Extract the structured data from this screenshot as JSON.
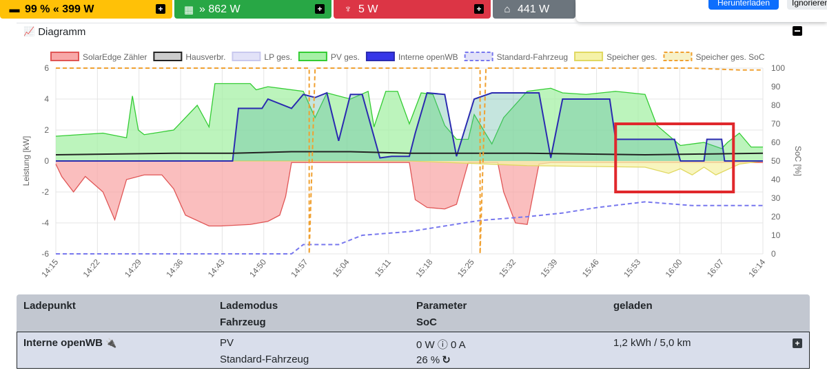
{
  "status_bar": {
    "battery": {
      "icon": "battery-icon",
      "glyph": "▬",
      "text": "99 % « 399 W",
      "color": "#ffc107",
      "text_color": "#000000"
    },
    "pv": {
      "icon": "solar-panel-icon",
      "glyph": "▦",
      "text": "» 862 W",
      "color": "#28a745",
      "text_color": "#ffffff"
    },
    "grid": {
      "icon": "power-tower-icon",
      "glyph": "♆",
      "text": "5 W",
      "color": "#dc3545",
      "text_color": "#ffffff"
    },
    "house": {
      "icon": "house-icon",
      "glyph": "⌂",
      "text": "441 W",
      "color": "#6c757d",
      "text_color": "#ffffff"
    }
  },
  "toast": {
    "primary_label": "Herunterladen",
    "secondary_label": "Ignorieren"
  },
  "diagram_card": {
    "title": "Diagramm"
  },
  "chart_data": {
    "type": "area",
    "title": "",
    "legend": [
      {
        "name": "SolarEdge Zähler",
        "fill": "#f8a8a8",
        "stroke": "#e05555",
        "dashed": false
      },
      {
        "name": "Hausverbr.",
        "fill": "#cccccc",
        "stroke": "#222222",
        "dashed": false
      },
      {
        "name": "LP ges.",
        "fill": "#e2e2f8",
        "stroke": "#c8c8ee",
        "dashed": false
      },
      {
        "name": "PV ges.",
        "fill": "#a6f0a6",
        "stroke": "#33cc33",
        "dashed": false
      },
      {
        "name": "Interne openWB",
        "fill": "#3535e8",
        "stroke": "#2a2ab0",
        "dashed": false
      },
      {
        "name": "Standard-Fahrzeug",
        "fill": "#e2e2f8",
        "stroke": "#7777ee",
        "dashed": true
      },
      {
        "name": "Speicher ges.",
        "fill": "#f5f2a8",
        "stroke": "#e0d860",
        "dashed": false
      },
      {
        "name": "Speicher ges. SoC",
        "fill": "#f7f1c8",
        "stroke": "#f0a030",
        "dashed": true
      }
    ],
    "ylabel": "Leistung [kW]",
    "y2label": "SoC [%]",
    "ylim": [
      -6,
      6
    ],
    "y2lim": [
      0,
      100
    ],
    "yticks": [
      "6",
      "4",
      "2",
      "0",
      "-2",
      "-4",
      "-6"
    ],
    "y2ticks": [
      "100",
      "90",
      "80",
      "70",
      "60",
      "50",
      "40",
      "30",
      "20",
      "10",
      "0"
    ],
    "xticks": [
      "14:15",
      "14:22",
      "14:29",
      "14:36",
      "14:43",
      "14:50",
      "14:57",
      "15:04",
      "15:11",
      "15:18",
      "15:25",
      "15:32",
      "15:39",
      "15:46",
      "15:53",
      "16:00",
      "16:07",
      "16:14"
    ],
    "x_minutes_start": 0,
    "x_minutes_end": 120,
    "series": [
      {
        "name": "PV ges.",
        "points": [
          [
            0,
            1.6
          ],
          [
            8,
            1.8
          ],
          [
            12,
            1.5
          ],
          [
            13,
            4.2
          ],
          [
            14,
            2.0
          ],
          [
            15,
            1.7
          ],
          [
            20,
            2.0
          ],
          [
            24,
            3.6
          ],
          [
            26,
            2.2
          ],
          [
            27,
            5.0
          ],
          [
            33,
            5.0
          ],
          [
            34,
            4.6
          ],
          [
            36,
            4.8
          ],
          [
            42,
            4.5
          ],
          [
            44,
            2.8
          ],
          [
            46,
            4.4
          ],
          [
            50,
            4.0
          ],
          [
            53,
            4.5
          ],
          [
            54,
            2.2
          ],
          [
            56,
            4.5
          ],
          [
            58,
            4.5
          ],
          [
            60,
            2.4
          ],
          [
            62,
            4.4
          ],
          [
            64,
            4.3
          ],
          [
            66,
            2.3
          ],
          [
            68,
            1.4
          ],
          [
            70,
            1.4
          ],
          [
            71,
            3.0
          ],
          [
            74,
            1.1
          ],
          [
            76,
            2.8
          ],
          [
            80,
            4.5
          ],
          [
            84,
            4.7
          ],
          [
            86,
            4.4
          ],
          [
            90,
            4.3
          ],
          [
            95,
            4.5
          ],
          [
            100,
            4.3
          ],
          [
            102,
            2.3
          ],
          [
            106,
            1.0
          ],
          [
            110,
            1.2
          ],
          [
            113,
            0.8
          ],
          [
            114,
            1.2
          ],
          [
            116,
            1.8
          ],
          [
            118,
            0.9
          ],
          [
            120,
            0.9
          ]
        ]
      },
      {
        "name": "Interne openWB",
        "points": [
          [
            0,
            0
          ],
          [
            30,
            0
          ],
          [
            31,
            3.4
          ],
          [
            35,
            3.4
          ],
          [
            36,
            4.0
          ],
          [
            40,
            3.4
          ],
          [
            42,
            4.3
          ],
          [
            44,
            4.1
          ],
          [
            46,
            4.4
          ],
          [
            48,
            1.3
          ],
          [
            50,
            4.3
          ],
          [
            52,
            4.3
          ],
          [
            55,
            0.2
          ],
          [
            57,
            0.3
          ],
          [
            60,
            0.3
          ],
          [
            61,
            1.8
          ],
          [
            63,
            4.4
          ],
          [
            66,
            4.3
          ],
          [
            68,
            0.3
          ],
          [
            71,
            4.0
          ],
          [
            74,
            4.4
          ],
          [
            82,
            4.4
          ],
          [
            84,
            0.2
          ],
          [
            86,
            4.0
          ],
          [
            94,
            4.0
          ],
          [
            95,
            1.4
          ],
          [
            105,
            1.4
          ],
          [
            106,
            0
          ],
          [
            110,
            0
          ],
          [
            110.5,
            1.4
          ],
          [
            113,
            1.4
          ],
          [
            113.5,
            0
          ],
          [
            118,
            0
          ],
          [
            120,
            0
          ]
        ]
      },
      {
        "name": "Hausverbr.",
        "points": [
          [
            0,
            0.4
          ],
          [
            20,
            0.5
          ],
          [
            30,
            0.5
          ],
          [
            40,
            0.6
          ],
          [
            50,
            0.6
          ],
          [
            60,
            0.5
          ],
          [
            80,
            0.5
          ],
          [
            100,
            0.4
          ],
          [
            120,
            0.5
          ]
        ]
      },
      {
        "name": "SolarEdge Zähler",
        "points": [
          [
            0,
            -0.2
          ],
          [
            1,
            -1.0
          ],
          [
            3,
            -2.0
          ],
          [
            5,
            -1.0
          ],
          [
            8,
            -2.0
          ],
          [
            10,
            -3.8
          ],
          [
            12,
            -1.2
          ],
          [
            15,
            -0.9
          ],
          [
            18,
            -0.9
          ],
          [
            20,
            -1.8
          ],
          [
            22,
            -3.5
          ],
          [
            26,
            -4.2
          ],
          [
            28,
            -4.2
          ],
          [
            33,
            -4.1
          ],
          [
            36,
            -3.9
          ],
          [
            38,
            -3.5
          ],
          [
            39,
            -2.3
          ],
          [
            40,
            -0.1
          ],
          [
            60,
            -0.1
          ],
          [
            61,
            -2.5
          ],
          [
            63,
            -3.0
          ],
          [
            66,
            -3.1
          ],
          [
            68,
            -2.8
          ],
          [
            70,
            -0.1
          ],
          [
            75,
            -0.1
          ],
          [
            76,
            -2.0
          ],
          [
            78,
            -4.0
          ],
          [
            80,
            -4.1
          ],
          [
            82,
            -0.2
          ],
          [
            84,
            -0.1
          ],
          [
            90,
            -0.1
          ],
          [
            100,
            -0.1
          ],
          [
            120,
            -0.1
          ]
        ]
      },
      {
        "name": "Speicher ges.",
        "points": [
          [
            0,
            0
          ],
          [
            60,
            0
          ],
          [
            80,
            -0.3
          ],
          [
            100,
            -0.4
          ],
          [
            104,
            -0.8
          ],
          [
            106,
            -0.5
          ],
          [
            108,
            -0.9
          ],
          [
            110,
            -0.4
          ],
          [
            112,
            -0.9
          ],
          [
            116,
            -0.2
          ],
          [
            120,
            0
          ]
        ]
      },
      {
        "name": "Standard-Fahrzeug",
        "soc_points": [
          [
            0,
            0
          ],
          [
            40,
            0
          ],
          [
            42,
            5
          ],
          [
            48,
            5
          ],
          [
            52,
            10
          ],
          [
            60,
            12
          ],
          [
            66,
            15
          ],
          [
            72,
            18
          ],
          [
            80,
            20
          ],
          [
            86,
            22
          ],
          [
            92,
            25
          ],
          [
            100,
            28
          ],
          [
            108,
            26
          ],
          [
            120,
            26
          ]
        ]
      },
      {
        "name": "Speicher ges. SoC",
        "soc_points": [
          [
            0,
            100
          ],
          [
            43,
            100
          ],
          [
            43,
            0
          ],
          [
            44,
            100
          ],
          [
            72,
            100
          ],
          [
            72,
            0
          ],
          [
            73,
            100
          ],
          [
            96,
            100
          ],
          [
            108,
            100
          ],
          [
            116,
            99
          ],
          [
            120,
            99
          ]
        ]
      }
    ],
    "annotations": [
      {
        "type": "highlight-box",
        "label": "",
        "x_range_minutes": [
          95,
          115
        ],
        "y_range": [
          -2.0,
          2.4
        ],
        "color": "#e0282c"
      }
    ]
  },
  "table": {
    "headers": {
      "col1": "Ladepunkt",
      "col2_line1": "Lademodus",
      "col2_line2": "Fahrzeug",
      "col3_line1": "Parameter",
      "col3_line2": "SoC",
      "col4": "geladen"
    },
    "row": {
      "ladepunkt": "Interne openWB",
      "lademodus": "PV",
      "fahrzeug": "Standard-Fahrzeug",
      "parameter": "0 W ⓘ 0 A",
      "soc": "26 %",
      "geladen": "1,2 kWh / 5,0 km"
    }
  }
}
